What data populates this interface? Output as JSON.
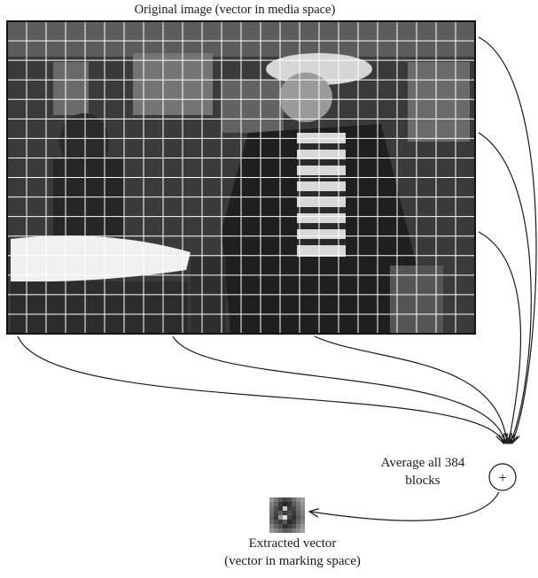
{
  "caption_top": "Original image (vector in media space)",
  "average_label": "Average all 384 blocks",
  "plus_symbol": "+",
  "extracted_line1": "Extracted vector",
  "extracted_line2": "(vector in marking space)",
  "grid": {
    "columns": 24,
    "rows": 16,
    "line_color": "#ffffff"
  },
  "colors": {
    "arrow": "#1a1a1a",
    "image_bg": "#3a3a3a"
  }
}
